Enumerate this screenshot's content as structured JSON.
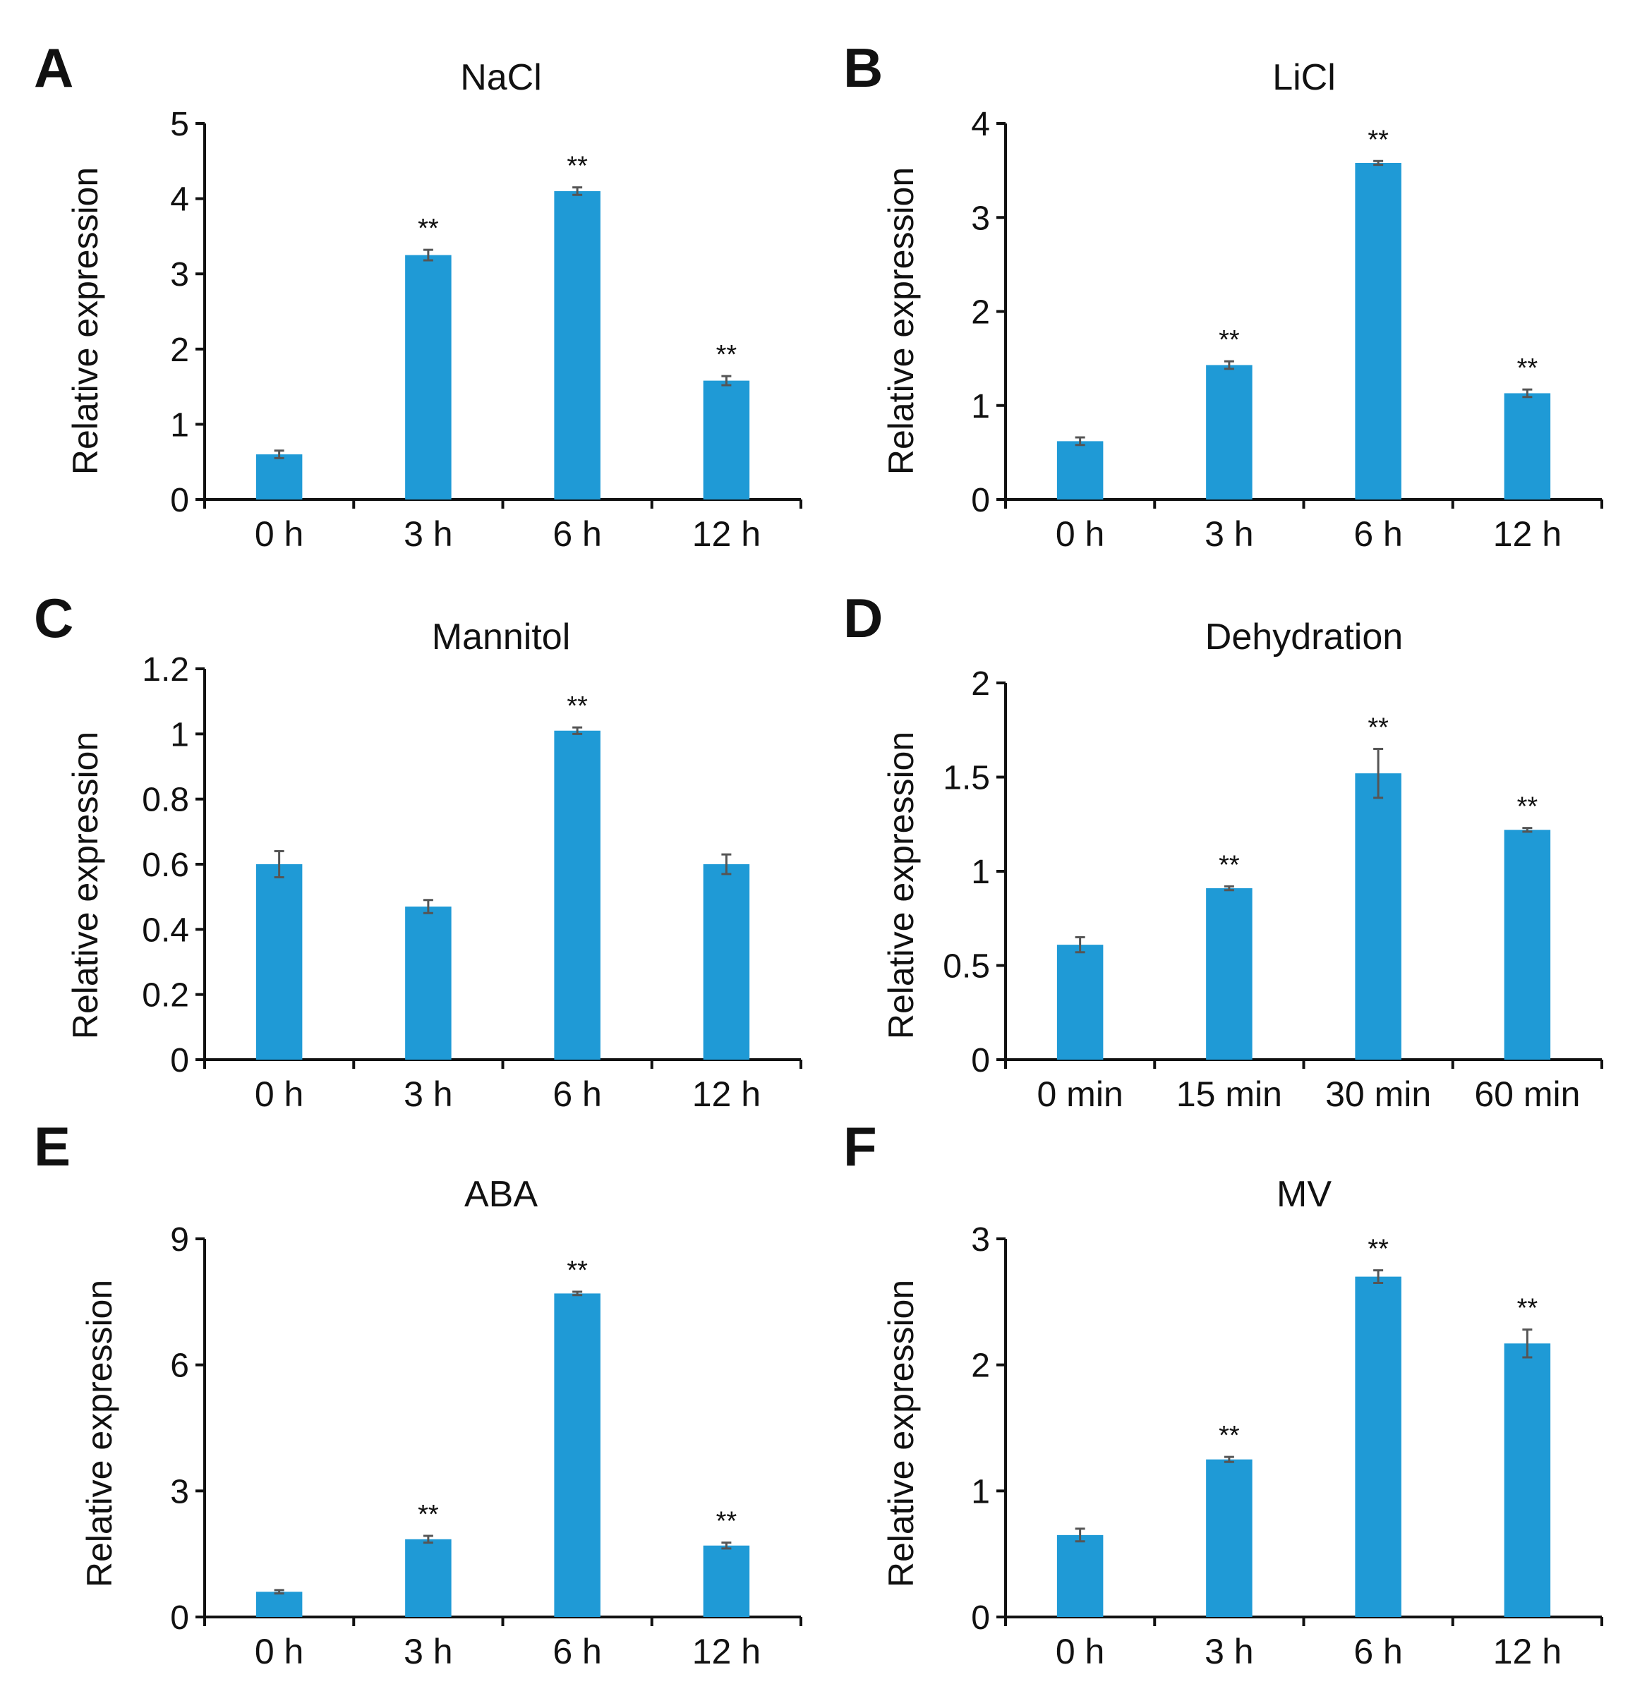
{
  "bar_color": "#1f9ad6",
  "chart_data": [
    {
      "type": "bar",
      "panel": "A",
      "title": "NaCl",
      "xlabel": "",
      "ylabel": "Relative expression",
      "categories": [
        "0 h",
        "3 h",
        "6 h",
        "12 h"
      ],
      "values": [
        0.6,
        3.25,
        4.1,
        1.58
      ],
      "errors": [
        0.05,
        0.07,
        0.05,
        0.06
      ],
      "significance": [
        "",
        "**",
        "**",
        "**"
      ],
      "ylim": [
        0,
        5
      ],
      "yticks": [
        "0",
        "1",
        "2",
        "3",
        "4",
        "5"
      ],
      "ytick_values": [
        0,
        1,
        2,
        3,
        4,
        5
      ]
    },
    {
      "type": "bar",
      "panel": "B",
      "title": "LiCl",
      "xlabel": "",
      "ylabel": "Relative expression",
      "categories": [
        "0 h",
        "3 h",
        "6 h",
        "12 h"
      ],
      "values": [
        0.62,
        1.43,
        3.58,
        1.13
      ],
      "errors": [
        0.04,
        0.04,
        0.02,
        0.04
      ],
      "significance": [
        "",
        "**",
        "**",
        "**"
      ],
      "ylim": [
        0,
        4
      ],
      "yticks": [
        "0",
        "1",
        "2",
        "3",
        "4"
      ],
      "ytick_values": [
        0,
        1,
        2,
        3,
        4
      ]
    },
    {
      "type": "bar",
      "panel": "C",
      "title": "Mannitol",
      "xlabel": "",
      "ylabel": "Relative expression",
      "categories": [
        "0 h",
        "3 h",
        "6 h",
        "12 h"
      ],
      "values": [
        0.6,
        0.47,
        1.01,
        0.6
      ],
      "errors": [
        0.04,
        0.02,
        0.01,
        0.03
      ],
      "significance": [
        "",
        "",
        "**",
        ""
      ],
      "ylim": [
        0,
        1.2
      ],
      "yticks": [
        "0",
        "0.2",
        "0.4",
        "0.6",
        "0.8",
        "1",
        "1.2"
      ],
      "ytick_values": [
        0,
        0.2,
        0.4,
        0.6,
        0.8,
        1,
        1.2
      ]
    },
    {
      "type": "bar",
      "panel": "D",
      "title": "Dehydration",
      "xlabel": "",
      "ylabel": "Relative expression",
      "categories": [
        "0 min",
        "15 min",
        "30 min",
        "60 min"
      ],
      "values": [
        0.61,
        0.91,
        1.52,
        1.22
      ],
      "errors": [
        0.04,
        0.01,
        0.13,
        0.01
      ],
      "significance": [
        "",
        "**",
        "**",
        "**"
      ],
      "ylim": [
        0,
        2
      ],
      "yticks": [
        "0",
        "0.5",
        "1",
        "1.5",
        "2"
      ],
      "ytick_values": [
        0,
        0.5,
        1,
        1.5,
        2
      ]
    },
    {
      "type": "bar",
      "panel": "E",
      "title": "ABA",
      "xlabel": "",
      "ylabel": "Relative expression",
      "categories": [
        "0 h",
        "3 h",
        "6 h",
        "12 h"
      ],
      "values": [
        0.6,
        1.85,
        7.7,
        1.7
      ],
      "errors": [
        0.04,
        0.08,
        0.04,
        0.07
      ],
      "significance": [
        "",
        "**",
        "**",
        "**"
      ],
      "ylim": [
        0,
        9
      ],
      "yticks": [
        "0",
        "3",
        "6",
        "9"
      ],
      "ytick_values": [
        0,
        3,
        6,
        9
      ]
    },
    {
      "type": "bar",
      "panel": "F",
      "title": "MV",
      "xlabel": "",
      "ylabel": "Relative expression",
      "categories": [
        "0 h",
        "3 h",
        "6 h",
        "12 h"
      ],
      "values": [
        0.65,
        1.25,
        2.7,
        2.17
      ],
      "errors": [
        0.05,
        0.02,
        0.05,
        0.11
      ],
      "significance": [
        "",
        "**",
        "**",
        "**"
      ],
      "ylim": [
        0,
        3
      ],
      "yticks": [
        "0",
        "1",
        "2",
        "3"
      ],
      "ytick_values": [
        0,
        1,
        2,
        3
      ]
    }
  ]
}
